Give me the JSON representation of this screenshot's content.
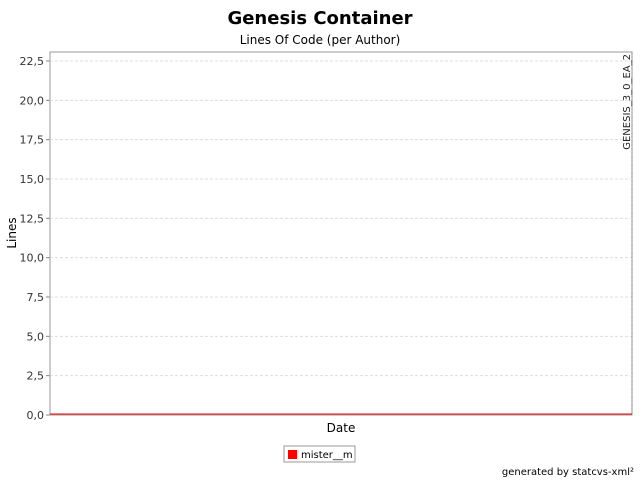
{
  "chart_data": {
    "type": "line",
    "title": "Genesis Container",
    "subtitle": "Lines Of Code (per Author)",
    "xlabel": "Date",
    "ylabel": "Lines",
    "ylim": [
      0,
      22.5
    ],
    "yticks": [
      "0,0",
      "2,5",
      "5,0",
      "7,5",
      "10,0",
      "12,5",
      "15,0",
      "17,5",
      "20,0",
      "22,5"
    ],
    "ytick_values": [
      0,
      2.5,
      5,
      7.5,
      10,
      12.5,
      15,
      17.5,
      20,
      22.5
    ],
    "grid": true,
    "legend_placement": "bottom-center",
    "series": [
      {
        "name": "mister__m",
        "color": "#ff0000",
        "values": [
          0,
          0
        ]
      }
    ],
    "markers": [
      {
        "label": "GENESIS_3_0_EA_2"
      }
    ],
    "footer": "generated by statcvs-xml²"
  }
}
